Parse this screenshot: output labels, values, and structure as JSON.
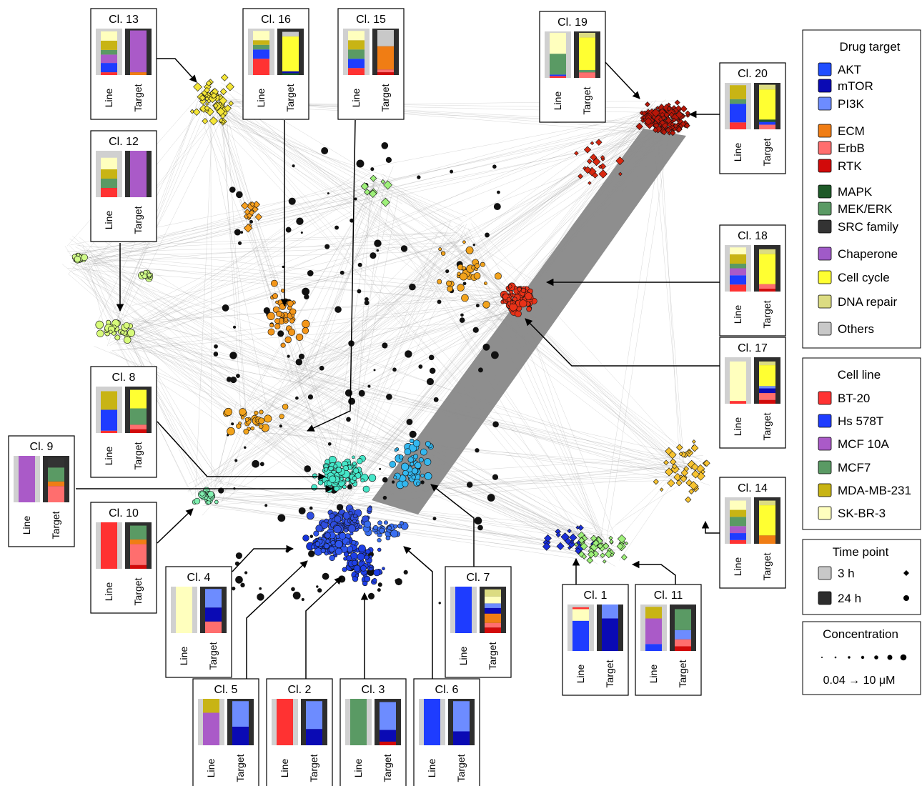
{
  "colors": {
    "cell_line_bg": "#d0d0d0",
    "target_bg": "#2e2e2e",
    "edge": "#8c8c8c",
    "cluster_colors": {
      "1": "#1a2fd8",
      "2": "#1533d8",
      "3": "#1e3fe6",
      "4": "#2d55f0",
      "5": "#2f4ee0",
      "6": "#3a6ff0",
      "7": "#33b8f0",
      "8": "#45e6c8",
      "9": "#80f0b0",
      "10": "#cffa88",
      "11": "#9ef07a",
      "12": "#d7fb7a",
      "13": "#f4e536",
      "14": "#f7c330",
      "15": "#f8a020",
      "16": "#f3961a",
      "17": "#f2a31c",
      "18": "#e83218",
      "19": "#d92810",
      "20": "#b81608"
    }
  },
  "legend": {
    "drug_target": {
      "title": "Drug target",
      "items": [
        {
          "label": "AKT",
          "color": "#1f4dff"
        },
        {
          "label": "mTOR",
          "color": "#0a0ab4"
        },
        {
          "label": "PI3K",
          "color": "#6d8cff"
        },
        {
          "label": "ECM",
          "color": "#f07d14"
        },
        {
          "label": "ErbB",
          "color": "#ff6e6e"
        },
        {
          "label": "RTK",
          "color": "#d20a0a"
        },
        {
          "label": "MAPK",
          "color": "#1e5a28"
        },
        {
          "label": "MEK/ERK",
          "color": "#5a9a64"
        },
        {
          "label": "SRC family",
          "color": "#333333"
        },
        {
          "label": "Chaperone",
          "color": "#a05ac8"
        },
        {
          "label": "Cell cycle",
          "color": "#ffff32"
        },
        {
          "label": "DNA repair",
          "color": "#dcdc82"
        },
        {
          "label": "Others",
          "color": "#c8c8c8"
        }
      ]
    },
    "cell_line": {
      "title": "Cell line",
      "items": [
        {
          "label": "BT-20",
          "color": "#ff3232"
        },
        {
          "label": "Hs 578T",
          "color": "#1e3cff"
        },
        {
          "label": "MCF 10A",
          "color": "#aa5ac8"
        },
        {
          "label": "MCF7",
          "color": "#5a9a64"
        },
        {
          "label": "MDA-MB-231",
          "color": "#c8b414"
        },
        {
          "label": "SK-BR-3",
          "color": "#ffffbe"
        }
      ]
    },
    "time_point": {
      "title": "Time point",
      "items": [
        {
          "label": "3 h",
          "color": "#c8c8c8",
          "marker": "diamond"
        },
        {
          "label": "24 h",
          "color": "#2d2d2d",
          "marker": "circle"
        }
      ]
    },
    "concentration": {
      "title": "Concentration",
      "range_label": "0.04 → 10 μM"
    }
  },
  "axis_labels": {
    "line": "Line",
    "target": "Target"
  },
  "clusters": [
    {
      "id": "1",
      "title": "Cl. 1",
      "line": [
        {
          "c": "#1e3cff",
          "v": 0.65
        },
        {
          "c": "#ffffbe",
          "v": 0.25
        },
        {
          "c": "#ff3232",
          "v": 0.04
        }
      ],
      "target": [
        {
          "c": "#0a0ab4",
          "v": 0.7
        },
        {
          "c": "#6d8cff",
          "v": 0.3
        }
      ]
    },
    {
      "id": "2",
      "title": "Cl. 2",
      "line": [
        {
          "c": "#ff3232",
          "v": 1
        }
      ],
      "target": [
        {
          "c": "#0a0ab4",
          "v": 0.35
        },
        {
          "c": "#6d8cff",
          "v": 0.6
        }
      ]
    },
    {
      "id": "3",
      "title": "Cl. 3",
      "line": [
        {
          "c": "#5a9a64",
          "v": 1
        }
      ],
      "target": [
        {
          "c": "#d20a0a",
          "v": 0.08
        },
        {
          "c": "#0a0ab4",
          "v": 0.25
        },
        {
          "c": "#6d8cff",
          "v": 0.6
        }
      ]
    },
    {
      "id": "4",
      "title": "Cl. 4",
      "line": [
        {
          "c": "#ffffbe",
          "v": 1
        }
      ],
      "target": [
        {
          "c": "#ff6e6e",
          "v": 0.25
        },
        {
          "c": "#0a0ab4",
          "v": 0.3
        },
        {
          "c": "#6d8cff",
          "v": 0.4
        }
      ]
    },
    {
      "id": "5",
      "title": "Cl. 5",
      "line": [
        {
          "c": "#aa5ac8",
          "v": 0.7
        },
        {
          "c": "#c8b414",
          "v": 0.3
        }
      ],
      "target": [
        {
          "c": "#0a0ab4",
          "v": 0.4
        },
        {
          "c": "#6d8cff",
          "v": 0.55
        }
      ]
    },
    {
      "id": "6",
      "title": "Cl. 6",
      "line": [
        {
          "c": "#1e3cff",
          "v": 1
        }
      ],
      "target": [
        {
          "c": "#0a0ab4",
          "v": 0.3
        },
        {
          "c": "#6d8cff",
          "v": 0.65
        }
      ]
    },
    {
      "id": "7",
      "title": "Cl. 7",
      "line": [
        {
          "c": "#1e3cff",
          "v": 1
        }
      ],
      "target": [
        {
          "c": "#d20a0a",
          "v": 0.12
        },
        {
          "c": "#ff6e6e",
          "v": 0.1
        },
        {
          "c": "#f07d14",
          "v": 0.2
        },
        {
          "c": "#0a0ab4",
          "v": 0.12
        },
        {
          "c": "#6d8cff",
          "v": 0.1
        },
        {
          "c": "#ffffbe",
          "v": 0.15
        },
        {
          "c": "#dcdc82",
          "v": 0.15
        }
      ]
    },
    {
      "id": "8",
      "title": "Cl. 8",
      "line": [
        {
          "c": "#ff3232",
          "v": 0.05
        },
        {
          "c": "#1e3cff",
          "v": 0.45
        },
        {
          "c": "#c8b414",
          "v": 0.4
        }
      ],
      "target": [
        {
          "c": "#d20a0a",
          "v": 0.08
        },
        {
          "c": "#ff6e6e",
          "v": 0.1
        },
        {
          "c": "#5a9a64",
          "v": 0.35
        },
        {
          "c": "#ffff32",
          "v": 0.4
        }
      ]
    },
    {
      "id": "9",
      "title": "Cl. 9",
      "line": [
        {
          "c": "#aa5ac8",
          "v": 1
        }
      ],
      "target": [
        {
          "c": "#ff6e6e",
          "v": 0.35
        },
        {
          "c": "#f07d14",
          "v": 0.1
        },
        {
          "c": "#5a9a64",
          "v": 0.3
        },
        {
          "c": "#333333",
          "v": 0.2
        }
      ]
    },
    {
      "id": "10",
      "title": "Cl. 10",
      "line": [
        {
          "c": "#ff3232",
          "v": 1
        }
      ],
      "target": [
        {
          "c": "#d20a0a",
          "v": 0.08
        },
        {
          "c": "#ff6e6e",
          "v": 0.45
        },
        {
          "c": "#f07d14",
          "v": 0.1
        },
        {
          "c": "#5a9a64",
          "v": 0.3
        }
      ]
    },
    {
      "id": "11",
      "title": "Cl. 11",
      "line": [
        {
          "c": "#1e3cff",
          "v": 0.15
        },
        {
          "c": "#aa5ac8",
          "v": 0.55
        },
        {
          "c": "#c8b414",
          "v": 0.25
        }
      ],
      "target": [
        {
          "c": "#d20a0a",
          "v": 0.1
        },
        {
          "c": "#ff6e6e",
          "v": 0.15
        },
        {
          "c": "#6d8cff",
          "v": 0.2
        },
        {
          "c": "#5a9a64",
          "v": 0.45
        }
      ]
    },
    {
      "id": "12",
      "title": "Cl. 12",
      "line": [
        {
          "c": "#ff3232",
          "v": 0.2
        },
        {
          "c": "#5a9a64",
          "v": 0.2
        },
        {
          "c": "#c8b414",
          "v": 0.2
        },
        {
          "c": "#ffffbe",
          "v": 0.25
        }
      ],
      "target": [
        {
          "c": "#aa5ac8",
          "v": 1
        }
      ]
    },
    {
      "id": "13",
      "title": "Cl. 13",
      "line": [
        {
          "c": "#ff3232",
          "v": 0.06
        },
        {
          "c": "#1e3cff",
          "v": 0.2
        },
        {
          "c": "#aa5ac8",
          "v": 0.18
        },
        {
          "c": "#5a9a64",
          "v": 0.1
        },
        {
          "c": "#c8b414",
          "v": 0.2
        },
        {
          "c": "#ffffbe",
          "v": 0.2
        }
      ],
      "target": [
        {
          "c": "#f07d14",
          "v": 0.06
        },
        {
          "c": "#aa5ac8",
          "v": 0.9
        }
      ]
    },
    {
      "id": "14",
      "title": "Cl. 14",
      "line": [
        {
          "c": "#ff3232",
          "v": 0.08
        },
        {
          "c": "#1e3cff",
          "v": 0.15
        },
        {
          "c": "#aa5ac8",
          "v": 0.15
        },
        {
          "c": "#5a9a64",
          "v": 0.2
        },
        {
          "c": "#c8b414",
          "v": 0.15
        },
        {
          "c": "#ffffbe",
          "v": 0.2
        }
      ],
      "target": [
        {
          "c": "#f07d14",
          "v": 0.18
        },
        {
          "c": "#ffff32",
          "v": 0.65
        },
        {
          "c": "#dcdc82",
          "v": 0.1
        }
      ]
    },
    {
      "id": "15",
      "title": "Cl. 15",
      "line": [
        {
          "c": "#ff3232",
          "v": 0.15
        },
        {
          "c": "#1e3cff",
          "v": 0.2
        },
        {
          "c": "#5a9a64",
          "v": 0.2
        },
        {
          "c": "#c8b414",
          "v": 0.2
        },
        {
          "c": "#ffffbe",
          "v": 0.2
        }
      ],
      "target": [
        {
          "c": "#d20a0a",
          "v": 0.06
        },
        {
          "c": "#ff6e6e",
          "v": 0.06
        },
        {
          "c": "#f07d14",
          "v": 0.5
        },
        {
          "c": "#c8c8c8",
          "v": 0.35
        }
      ]
    },
    {
      "id": "16",
      "title": "Cl. 16",
      "line": [
        {
          "c": "#ff3232",
          "v": 0.35
        },
        {
          "c": "#1e3cff",
          "v": 0.2
        },
        {
          "c": "#5a9a64",
          "v": 0.1
        },
        {
          "c": "#c8b414",
          "v": 0.1
        },
        {
          "c": "#ffffbe",
          "v": 0.2
        }
      ],
      "target": [
        {
          "c": "#1e5a28",
          "v": 0.04
        },
        {
          "c": "#0a0ab4",
          "v": 0.04
        },
        {
          "c": "#ffff32",
          "v": 0.75
        },
        {
          "c": "#c8c8c8",
          "v": 0.1
        }
      ]
    },
    {
      "id": "17",
      "title": "Cl. 17",
      "line": [
        {
          "c": "#ff3232",
          "v": 0.06
        },
        {
          "c": "#ffffbe",
          "v": 0.85
        }
      ],
      "target": [
        {
          "c": "#d20a0a",
          "v": 0.08
        },
        {
          "c": "#ff6e6e",
          "v": 0.15
        },
        {
          "c": "#0a0ab4",
          "v": 0.1
        },
        {
          "c": "#6d8cff",
          "v": 0.05
        },
        {
          "c": "#ffff32",
          "v": 0.45
        },
        {
          "c": "#dcdc82",
          "v": 0.08
        }
      ]
    },
    {
      "id": "18",
      "title": "Cl. 18",
      "line": [
        {
          "c": "#ff3232",
          "v": 0.15
        },
        {
          "c": "#1e3cff",
          "v": 0.2
        },
        {
          "c": "#aa5ac8",
          "v": 0.15
        },
        {
          "c": "#5a9a64",
          "v": 0.1
        },
        {
          "c": "#c8b414",
          "v": 0.2
        },
        {
          "c": "#ffffbe",
          "v": 0.15
        }
      ],
      "target": [
        {
          "c": "#d20a0a",
          "v": 0.06
        },
        {
          "c": "#ff6e6e",
          "v": 0.1
        },
        {
          "c": "#ffff32",
          "v": 0.65
        },
        {
          "c": "#dcdc82",
          "v": 0.1
        }
      ]
    },
    {
      "id": "19",
      "title": "Cl. 19",
      "line": [
        {
          "c": "#ff3232",
          "v": 0.04
        },
        {
          "c": "#1e3cff",
          "v": 0.03
        },
        {
          "c": "#5a9a64",
          "v": 0.45
        },
        {
          "c": "#ffffbe",
          "v": 0.45
        }
      ],
      "target": [
        {
          "c": "#ff6e6e",
          "v": 0.12
        },
        {
          "c": "#5a9a64",
          "v": 0.05
        },
        {
          "c": "#ffff32",
          "v": 0.7
        },
        {
          "c": "#dcdc82",
          "v": 0.1
        }
      ]
    },
    {
      "id": "20",
      "title": "Cl. 20",
      "line": [
        {
          "c": "#ff3232",
          "v": 0.15
        },
        {
          "c": "#1e3cff",
          "v": 0.4
        },
        {
          "c": "#5a9a64",
          "v": 0.1
        },
        {
          "c": "#c8b414",
          "v": 0.3
        }
      ],
      "target": [
        {
          "c": "#ff6e6e",
          "v": 0.1
        },
        {
          "c": "#1e3cff",
          "v": 0.06
        },
        {
          "c": "#1e5a28",
          "v": 0.05
        },
        {
          "c": "#ffff32",
          "v": 0.65
        },
        {
          "c": "#dcdc82",
          "v": 0.1
        }
      ]
    }
  ]
}
